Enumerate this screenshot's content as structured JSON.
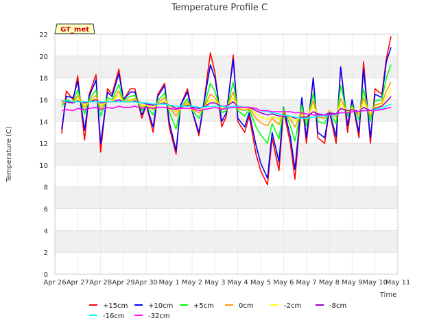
{
  "chart_data": {
    "type": "line",
    "title": "Temperature Profile C",
    "xlabel": "Time",
    "ylabel": "Temperature (C)",
    "ylim": [
      0,
      22
    ],
    "yticks": [
      0,
      2,
      4,
      6,
      8,
      10,
      12,
      14,
      16,
      18,
      20,
      22
    ],
    "xlim_days": [
      0,
      15
    ],
    "xticks": [
      "Apr 26",
      "Apr 27",
      "Apr 28",
      "Apr 29",
      "Apr 30",
      "May 1",
      "May 2",
      "May 3",
      "May 4",
      "May 5",
      "May 6",
      "May 7",
      "May 8",
      "May 9",
      "May 10",
      "May 11"
    ],
    "grid": "horizontal bands",
    "legend_position": "bottom",
    "annotation": "GT_met",
    "series_x_days": [
      0.3,
      0.5,
      0.8,
      1.0,
      1.3,
      1.5,
      1.8,
      2.0,
      2.3,
      2.5,
      2.8,
      3.0,
      3.3,
      3.5,
      3.8,
      4.0,
      4.3,
      4.5,
      4.8,
      5.0,
      5.3,
      5.5,
      5.8,
      6.0,
      6.3,
      6.5,
      6.8,
      7.0,
      7.3,
      7.5,
      7.8,
      8.0,
      8.3,
      8.5,
      8.8,
      9.0,
      9.3,
      9.5,
      9.8,
      10.0,
      10.3,
      10.5,
      10.8,
      11.0,
      11.3,
      11.5,
      11.8,
      12.0,
      12.3,
      12.5,
      12.8,
      13.0,
      13.3,
      13.5,
      13.8,
      14.0,
      14.3,
      14.5,
      14.7
    ],
    "series": [
      {
        "name": "+15cm",
        "color": "#ff0000",
        "values": [
          12.9,
          16.8,
          16.0,
          18.2,
          12.3,
          16.5,
          18.3,
          11.2,
          17.0,
          16.5,
          18.8,
          16.0,
          17.0,
          17.0,
          14.3,
          15.5,
          13.0,
          16.5,
          17.5,
          13.5,
          11.0,
          15.5,
          17.0,
          15.0,
          12.7,
          15.5,
          20.3,
          18.5,
          13.5,
          14.5,
          20.1,
          14.0,
          13.0,
          14.5,
          11.0,
          9.5,
          8.2,
          12.5,
          9.5,
          15.0,
          12.0,
          8.7,
          16.0,
          12.0,
          18.0,
          12.5,
          12.0,
          15.0,
          12.0,
          19.0,
          13.0,
          16.0,
          12.5,
          19.5,
          12.0,
          17.0,
          16.5,
          19.8,
          21.8
        ]
      },
      {
        "name": "+10cm",
        "color": "#0000ff",
        "values": [
          13.3,
          16.3,
          16.2,
          17.7,
          13.2,
          16.3,
          17.8,
          12.0,
          16.7,
          16.3,
          18.4,
          16.0,
          16.7,
          16.7,
          14.6,
          15.5,
          13.5,
          16.3,
          17.3,
          14.0,
          11.3,
          15.5,
          16.7,
          15.0,
          13.0,
          15.5,
          19.2,
          18.0,
          14.0,
          14.8,
          19.7,
          14.3,
          13.5,
          14.8,
          11.8,
          10.2,
          8.8,
          13.0,
          10.3,
          15.3,
          12.6,
          9.6,
          16.2,
          12.5,
          18.0,
          13.0,
          12.5,
          15.0,
          12.6,
          19.0,
          13.6,
          16.0,
          13.0,
          18.8,
          12.5,
          16.5,
          16.2,
          19.5,
          20.8
        ]
      },
      {
        "name": "+5cm",
        "color": "#00ff00",
        "values": [
          15.4,
          16.0,
          15.8,
          16.9,
          14.7,
          16.0,
          16.9,
          14.5,
          16.2,
          16.0,
          17.4,
          15.9,
          16.3,
          16.4,
          15.0,
          15.5,
          14.6,
          15.9,
          16.6,
          14.9,
          13.3,
          15.3,
          16.1,
          15.0,
          14.3,
          15.2,
          17.5,
          16.8,
          14.8,
          15.0,
          17.6,
          15.0,
          14.5,
          15.1,
          13.5,
          12.8,
          12.0,
          13.8,
          12.4,
          15.2,
          13.6,
          12.2,
          15.5,
          13.6,
          16.6,
          14.0,
          13.8,
          15.0,
          13.8,
          17.3,
          14.5,
          15.5,
          14.2,
          17.0,
          14.0,
          15.9,
          16.0,
          18.0,
          19.2
        ]
      },
      {
        "name": "0cm",
        "color": "#ff9900",
        "values": [
          15.7,
          15.8,
          15.7,
          16.4,
          15.3,
          15.8,
          16.4,
          15.2,
          15.9,
          15.8,
          16.8,
          15.8,
          16.0,
          16.1,
          15.3,
          15.5,
          15.1,
          15.7,
          16.2,
          15.3,
          14.5,
          15.2,
          15.8,
          15.1,
          14.8,
          15.2,
          16.5,
          16.2,
          15.1,
          15.2,
          16.7,
          15.2,
          15.0,
          15.2,
          14.3,
          13.9,
          13.6,
          14.3,
          13.7,
          14.9,
          14.2,
          13.5,
          14.8,
          14.1,
          15.9,
          14.4,
          14.3,
          15.0,
          14.4,
          16.1,
          14.8,
          15.3,
          14.6,
          16.2,
          14.5,
          15.5,
          15.7,
          16.8,
          17.6
        ]
      },
      {
        "name": "-2cm",
        "color": "#ffff00",
        "values": [
          15.8,
          15.8,
          15.7,
          16.1,
          15.5,
          15.8,
          16.1,
          15.5,
          15.8,
          15.8,
          16.4,
          15.8,
          15.9,
          16.0,
          15.5,
          15.5,
          15.3,
          15.6,
          15.9,
          15.4,
          14.9,
          15.2,
          15.6,
          15.2,
          15.0,
          15.2,
          16.0,
          15.9,
          15.3,
          15.3,
          16.2,
          15.3,
          15.2,
          15.3,
          14.7,
          14.4,
          14.2,
          14.5,
          14.2,
          14.6,
          14.4,
          14.0,
          14.5,
          14.3,
          15.4,
          14.6,
          14.5,
          14.9,
          14.6,
          15.6,
          14.9,
          15.2,
          14.8,
          15.7,
          14.8,
          15.3,
          15.5,
          16.2,
          17.0
        ]
      },
      {
        "name": "-8cm",
        "color": "#9900cc",
        "values": [
          15.9,
          15.8,
          15.7,
          15.9,
          15.7,
          15.8,
          16.0,
          15.7,
          15.8,
          15.8,
          16.0,
          15.8,
          15.8,
          15.9,
          15.7,
          15.6,
          15.5,
          15.6,
          15.7,
          15.5,
          15.2,
          15.3,
          15.5,
          15.3,
          15.2,
          15.3,
          15.7,
          15.7,
          15.4,
          15.4,
          15.8,
          15.4,
          15.3,
          15.3,
          15.0,
          14.8,
          14.6,
          14.7,
          14.5,
          14.5,
          14.5,
          14.3,
          14.4,
          14.4,
          14.9,
          14.7,
          14.6,
          14.8,
          14.7,
          15.2,
          15.0,
          15.1,
          14.9,
          15.3,
          15.0,
          15.2,
          15.4,
          15.8,
          16.3
        ]
      },
      {
        "name": "-16cm",
        "color": "#00ffff",
        "values": [
          15.8,
          15.9,
          15.8,
          15.8,
          15.8,
          15.8,
          15.8,
          15.8,
          15.8,
          15.8,
          15.8,
          15.8,
          15.8,
          15.8,
          15.7,
          15.7,
          15.6,
          15.6,
          15.6,
          15.5,
          15.4,
          15.4,
          15.4,
          15.4,
          15.3,
          15.3,
          15.4,
          15.4,
          15.4,
          15.3,
          15.4,
          15.4,
          15.3,
          15.3,
          15.2,
          15.0,
          14.9,
          14.8,
          14.7,
          14.6,
          14.5,
          14.4,
          14.3,
          14.3,
          14.4,
          14.5,
          14.5,
          14.6,
          14.6,
          14.8,
          14.8,
          14.9,
          14.9,
          15.0,
          15.0,
          15.1,
          15.2,
          15.4,
          15.6
        ]
      },
      {
        "name": "-32cm",
        "color": "#ff00ff",
        "values": [
          15.0,
          15.1,
          15.0,
          15.2,
          15.1,
          15.2,
          15.3,
          15.1,
          15.3,
          15.2,
          15.4,
          15.3,
          15.3,
          15.4,
          15.2,
          15.3,
          15.2,
          15.3,
          15.3,
          15.2,
          15.1,
          15.2,
          15.2,
          15.2,
          15.0,
          15.1,
          15.2,
          15.3,
          15.1,
          15.2,
          15.3,
          15.3,
          15.3,
          15.3,
          15.2,
          15.0,
          15.0,
          14.9,
          14.9,
          14.9,
          14.9,
          14.8,
          14.8,
          14.7,
          14.6,
          14.6,
          14.6,
          14.6,
          14.7,
          14.8,
          14.8,
          14.9,
          14.9,
          15.0,
          15.0,
          15.0,
          15.1,
          15.2,
          15.3
        ]
      }
    ]
  }
}
